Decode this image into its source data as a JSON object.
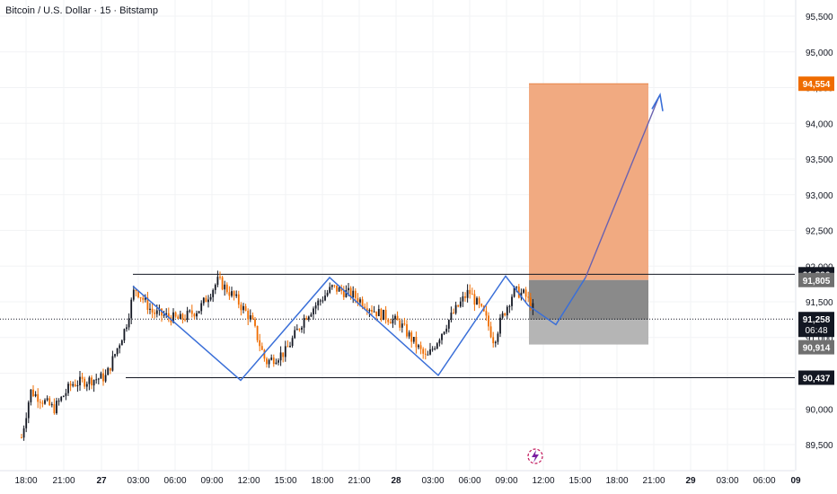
{
  "header": {
    "title": "Bitcoin / U.S. Dollar · 15 · Bitstamp"
  },
  "colors": {
    "candle_up": "#131722",
    "candle_down": "#ef6c00",
    "pattern_line": "#3a6fd8",
    "target_zone": "#f0a57a",
    "stop_zone_dark": "#8a8a8a",
    "stop_zone_light": "#b5b5b5",
    "arrow": "#6a62b0",
    "price_badge_orange": "#ef6c00",
    "price_badge_black": "#131722",
    "price_badge_gray": "#707070"
  },
  "chart_data": {
    "type": "candlestick",
    "y_axis": {
      "ylim": [
        89200,
        95700
      ],
      "ticks": [
        "95,500",
        "95,000",
        "94,500",
        "94,000",
        "93,500",
        "93,000",
        "92,500",
        "92,000",
        "91,500",
        "91,000",
        "90,500",
        "90,000",
        "89,500"
      ]
    },
    "x_axis": {
      "ticks": [
        "18:00",
        "21:00",
        "27",
        "03:00",
        "06:00",
        "09:00",
        "12:00",
        "15:00",
        "18:00",
        "21:00",
        "28",
        "03:00",
        "06:00",
        "09:00",
        "12:00",
        "15:00",
        "18:00",
        "21:00",
        "29",
        "03:00",
        "06:00",
        "09"
      ]
    },
    "price_labels": {
      "target": "94,554",
      "resistance": "91,886",
      "entry": "91,805",
      "last": "91,258",
      "countdown": "06:48",
      "stop": "90,914",
      "support": "90,437"
    },
    "levels": {
      "resistance": 91886,
      "support": 90437,
      "entry": 91805,
      "stop": 90914,
      "target": 94554,
      "last": 91258
    },
    "pattern_points": [
      [
        "02:30",
        91700
      ],
      [
        "11:30",
        90400
      ],
      [
        "17:30",
        91800
      ],
      [
        "23:00",
        90600
      ],
      [
        "27 23:00",
        91800
      ],
      [
        "04:00",
        90500
      ],
      [
        "09:00",
        91850
      ],
      [
        "10:45",
        91350
      ],
      [
        "13:00",
        91050
      ],
      [
        "17:00",
        91600
      ],
      [
        "21:00",
        94400
      ]
    ]
  }
}
